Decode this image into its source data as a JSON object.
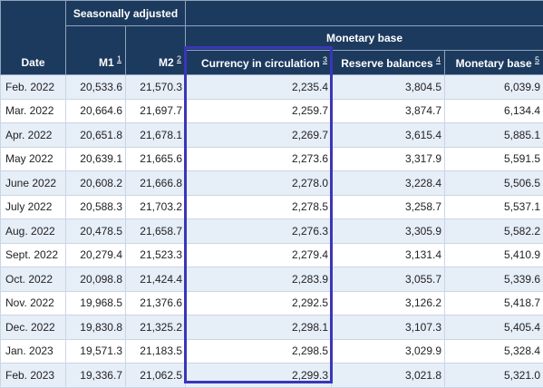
{
  "header": {
    "date": "Date",
    "seasonally_adjusted": "Seasonally adjusted",
    "monetary_base_group": "Monetary base",
    "m1": "M1",
    "m1_note": "1",
    "m2": "M2",
    "m2_note": "2",
    "currency": "Currency in circulation",
    "currency_note": "3",
    "reserve": "Reserve balances",
    "reserve_note": "4",
    "monetary_base": "Monetary base",
    "monetary_base_note": "5"
  },
  "rows": [
    {
      "date": "Feb. 2022",
      "m1": "20,533.6",
      "m2": "21,570.3",
      "currency": "2,235.4",
      "reserve": "3,804.5",
      "base": "6,039.9"
    },
    {
      "date": "Mar. 2022",
      "m1": "20,664.6",
      "m2": "21,697.7",
      "currency": "2,259.7",
      "reserve": "3,874.7",
      "base": "6,134.4"
    },
    {
      "date": "Apr. 2022",
      "m1": "20,651.8",
      "m2": "21,678.1",
      "currency": "2,269.7",
      "reserve": "3,615.4",
      "base": "5,885.1"
    },
    {
      "date": "May 2022",
      "m1": "20,639.1",
      "m2": "21,665.6",
      "currency": "2,273.6",
      "reserve": "3,317.9",
      "base": "5,591.5"
    },
    {
      "date": "June 2022",
      "m1": "20,608.2",
      "m2": "21,666.8",
      "currency": "2,278.0",
      "reserve": "3,228.4",
      "base": "5,506.5"
    },
    {
      "date": "July 2022",
      "m1": "20,588.3",
      "m2": "21,703.2",
      "currency": "2,278.5",
      "reserve": "3,258.7",
      "base": "5,537.1"
    },
    {
      "date": "Aug. 2022",
      "m1": "20,478.5",
      "m2": "21,658.7",
      "currency": "2,276.3",
      "reserve": "3,305.9",
      "base": "5,582.2"
    },
    {
      "date": "Sept. 2022",
      "m1": "20,279.4",
      "m2": "21,523.3",
      "currency": "2,279.4",
      "reserve": "3,131.4",
      "base": "5,410.9"
    },
    {
      "date": "Oct. 2022",
      "m1": "20,098.8",
      "m2": "21,424.4",
      "currency": "2,283.9",
      "reserve": "3,055.7",
      "base": "5,339.6"
    },
    {
      "date": "Nov. 2022",
      "m1": "19,968.5",
      "m2": "21,376.6",
      "currency": "2,292.5",
      "reserve": "3,126.2",
      "base": "5,418.7"
    },
    {
      "date": "Dec. 2022",
      "m1": "19,830.8",
      "m2": "21,325.2",
      "currency": "2,298.1",
      "reserve": "3,107.3",
      "base": "5,405.4"
    },
    {
      "date": "Jan. 2023",
      "m1": "19,571.3",
      "m2": "21,183.5",
      "currency": "2,298.5",
      "reserve": "3,029.9",
      "base": "5,328.4"
    },
    {
      "date": "Feb. 2023",
      "m1": "19,336.7",
      "m2": "21,062.5",
      "currency": "2,299.3",
      "reserve": "3,021.8",
      "base": "5,321.0"
    }
  ],
  "colors": {
    "header_bg": "#1c3a5e",
    "stripe_bg": "#e6eef8",
    "highlight_border": "#3a36b8"
  }
}
